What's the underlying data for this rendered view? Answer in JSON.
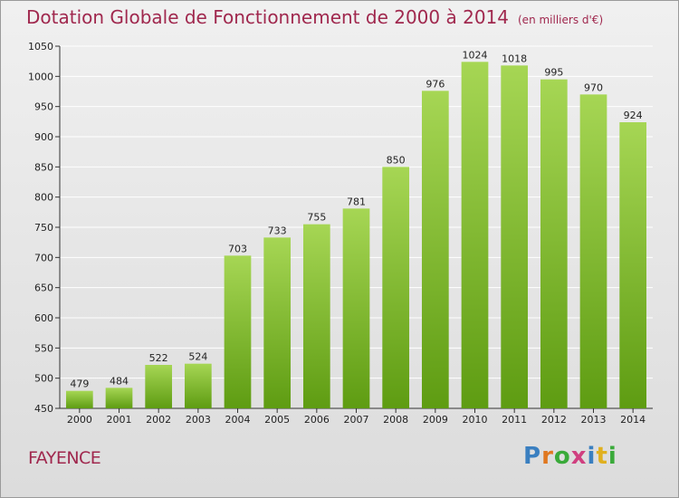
{
  "title": "Dotation Globale de Fonctionnement de 2000 à 2014",
  "unit_note": "(en milliers d'€)",
  "commune": "FAYENCE",
  "logo": {
    "text": "Proxiti",
    "letter_colors": [
      "#3a7fc0",
      "#e07820",
      "#3aaa3a",
      "#d04080",
      "#3a7fc0",
      "#e0b020",
      "#3aaa3a"
    ]
  },
  "colors": {
    "bar_top": "#a6d654",
    "bar_bottom": "#5e9c12",
    "title": "#a0284e",
    "grid": "#ffffff"
  },
  "chart_data": {
    "type": "bar",
    "categories": [
      "2000",
      "2001",
      "2002",
      "2003",
      "2004",
      "2005",
      "2006",
      "2007",
      "2008",
      "2009",
      "2010",
      "2011",
      "2012",
      "2013",
      "2014"
    ],
    "values": [
      479,
      484,
      522,
      524,
      703,
      733,
      755,
      781,
      850,
      976,
      1024,
      1018,
      995,
      970,
      924
    ],
    "ylim": [
      450,
      1050
    ],
    "yticks": [
      450,
      500,
      550,
      600,
      650,
      700,
      750,
      800,
      850,
      900,
      950,
      1000,
      1050
    ],
    "grid": true,
    "legend": "none"
  }
}
